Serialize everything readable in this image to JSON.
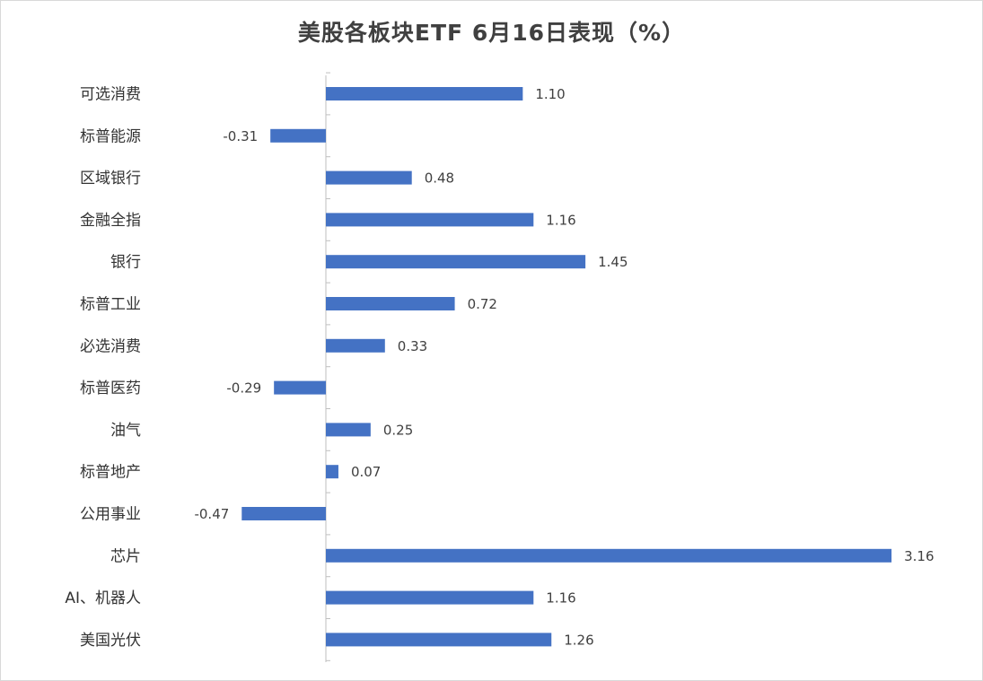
{
  "title": "美股各板块ETF  6月16日表现（%）",
  "chart_data": {
    "type": "bar",
    "orientation": "horizontal",
    "title": "美股各板块ETF  6月16日表现（%）",
    "categories": [
      "可选消费",
      "标普能源",
      "区域银行",
      "金融全指",
      "银行",
      "标普工业",
      "必选消费",
      "标普医药",
      "油气",
      "标普地产",
      "公用事业",
      "芯片",
      "AI、机器人",
      "美国光伏"
    ],
    "values": [
      1.1,
      -0.31,
      0.48,
      1.16,
      1.45,
      0.72,
      0.33,
      -0.29,
      0.25,
      0.07,
      -0.47,
      3.16,
      1.16,
      1.26
    ],
    "value_labels": [
      "1.10",
      "-0.31",
      "0.48",
      "1.16",
      "1.45",
      "0.72",
      "0.33",
      "-0.29",
      "0.25",
      "0.07",
      "-0.47",
      "3.16",
      "1.16",
      "1.26"
    ],
    "bar_color": "#4472c4",
    "grid": false,
    "legend": "none",
    "xlabel": "",
    "ylabel": ""
  }
}
